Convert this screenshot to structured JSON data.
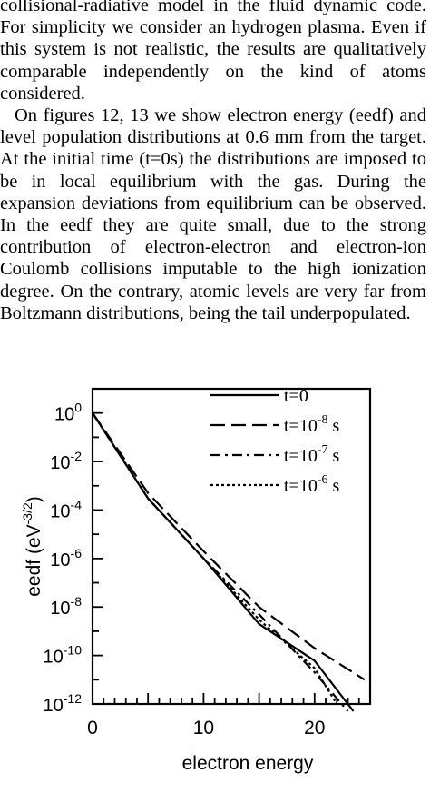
{
  "paper": {
    "paragraph1": "collisional-radiative model in the fluid dynamic code. For simplicity we consider an hydrogen plasma. Even if this system is not realistic, the results are qualitatively comparable independently on the kind of atoms considered.",
    "paragraph2": "On figures 12, 13 we show electron energy (eedf) and level population distributions at 0.6 mm from the target. At the initial time (t=0s) the distributions are imposed to be in local equilibrium with the gas. During the expansion deviations from equilibrium can be observed. In the eedf they are quite small, due to the strong contribution of electron-electron and electron-ion Coulomb collisions imputable to the high ionization degree. On the contrary, atomic levels are very far from Boltzmann distributions, being the tail underpopulated."
  },
  "chart_data": {
    "type": "line",
    "xlabel": "electron energy",
    "ylabel": "eedf (eV^-3/2)",
    "xlim": [
      0,
      25
    ],
    "ylim": [
      1e-12,
      10
    ],
    "yscale": "log",
    "x_ticks": [
      0,
      10,
      20
    ],
    "y_ticks": [
      "10^0",
      "10^-2",
      "10^-4",
      "10^-6",
      "10^-8",
      "10^-10",
      "10^-12"
    ],
    "legend_position": "top-right",
    "series": [
      {
        "name": "t=0",
        "style": "solid",
        "x": [
          0,
          5,
          10,
          15,
          20,
          23.5
        ],
        "y": [
          1.0,
          0.0003,
          1e-06,
          2e-09,
          6e-11,
          5e-13
        ]
      },
      {
        "name": "t=10^-8 s",
        "style": "dashed",
        "x": [
          0,
          5,
          10,
          15,
          20,
          24.5
        ],
        "y": [
          1.0,
          0.0005,
          2e-06,
          1e-08,
          2e-10,
          1e-11
        ]
      },
      {
        "name": "t=10^-7 s",
        "style": "dash-dot",
        "x": [
          0,
          5,
          10,
          15,
          20,
          23
        ],
        "y": [
          1.0,
          0.0003,
          1e-06,
          5e-09,
          2e-11,
          5e-13
        ]
      },
      {
        "name": "t=10^-6 s",
        "style": "dotted",
        "x": [
          0,
          5,
          10,
          15,
          20,
          22
        ],
        "y": [
          1.0,
          0.0003,
          1e-06,
          3e-09,
          3e-11,
          1e-12
        ]
      }
    ],
    "legend_labels": [
      {
        "base": "t=0"
      },
      {
        "base": "t=10",
        "exp": "-8",
        "unit": " s"
      },
      {
        "base": "t=10",
        "exp": "-7",
        "unit": " s"
      },
      {
        "base": "t=10",
        "exp": "-6",
        "unit": " s"
      }
    ]
  }
}
